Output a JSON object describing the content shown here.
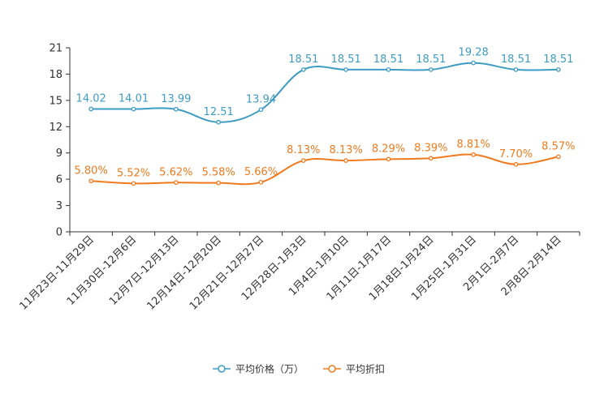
{
  "chart_data": {
    "type": "line",
    "title": "",
    "xlabel": "",
    "ylabel": "",
    "ylim": [
      0,
      21
    ],
    "yticks": [
      0,
      3,
      6,
      9,
      12,
      15,
      18,
      21
    ],
    "grid": false,
    "legend_position": "bottom-center",
    "categories": [
      "11月23日-11月29日",
      "11月30日-12月6日",
      "12月7日-12月13日",
      "12月14日-12月20日",
      "12月21日-12月27日",
      "12月28日-1月3日",
      "1月4日-1月10日",
      "1月11日-1月17日",
      "1月18日-1月24日",
      "1月25日-1月31日",
      "2月1日-2月7日",
      "2月8日-2月14日"
    ],
    "series": [
      {
        "name": "平均价格（万）",
        "color": "#3e9cc4",
        "values": [
          14.02,
          14.01,
          13.99,
          12.51,
          13.94,
          18.51,
          18.51,
          18.51,
          18.51,
          19.28,
          18.51,
          18.51
        ],
        "labels": [
          "14.02",
          "14.01",
          "13.99",
          "12.51",
          "13.94",
          "18.51",
          "18.51",
          "18.51",
          "18.51",
          "19.28",
          "18.51",
          "18.51"
        ]
      },
      {
        "name": "平均折扣",
        "color": "#f07a1e",
        "values": [
          5.8,
          5.52,
          5.62,
          5.58,
          5.66,
          8.13,
          8.13,
          8.29,
          8.39,
          8.81,
          7.7,
          8.57
        ],
        "labels": [
          "5.80%",
          "5.52%",
          "5.62%",
          "5.58%",
          "5.66%",
          "8.13%",
          "8.13%",
          "8.29%",
          "8.39%",
          "8.81%",
          "7.70%",
          "8.57%"
        ]
      }
    ]
  }
}
